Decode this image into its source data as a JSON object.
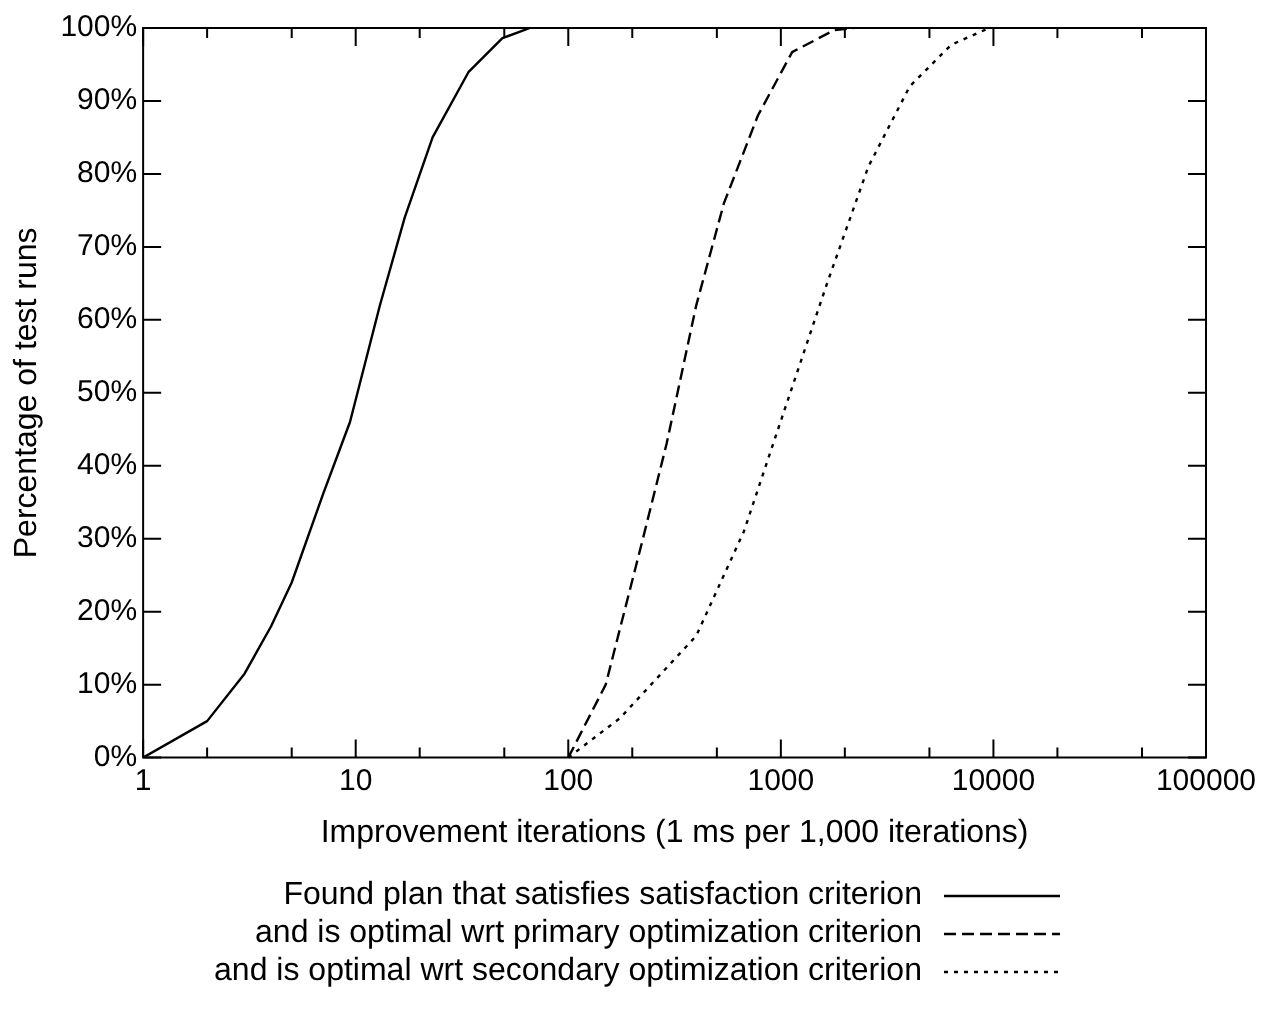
{
  "chart_data": {
    "type": "line",
    "xlabel": "Improvement iterations (1 ms per 1,000 iterations)",
    "ylabel": "Percentage of test runs",
    "log": "x",
    "grid": false,
    "legend": "bottom",
    "marker": "none",
    "xlim": [
      1,
      100000
    ],
    "xticks": [
      1,
      {
        "value": 2,
        "label": null
      },
      {
        "value": 5,
        "label": null
      },
      10,
      {
        "value": 20,
        "label": null
      },
      {
        "value": 50,
        "label": null
      },
      100,
      {
        "value": 200,
        "label": null
      },
      {
        "value": 500,
        "label": null
      },
      1000,
      {
        "value": 2000,
        "label": null
      },
      {
        "value": 5000,
        "label": null
      },
      10000,
      {
        "value": 20000,
        "label": null
      },
      {
        "value": 50000,
        "label": null
      },
      100000
    ],
    "ylim": [
      0,
      100
    ],
    "yticks": [
      {
        "value": 0,
        "label": "0%"
      },
      {
        "value": 10,
        "label": "10%"
      },
      {
        "value": 20,
        "label": "20%"
      },
      {
        "value": 30,
        "label": "30%"
      },
      {
        "value": 40,
        "label": "40%"
      },
      {
        "value": 50,
        "label": "50%"
      },
      {
        "value": 60,
        "label": "60%"
      },
      {
        "value": 70,
        "label": "70%"
      },
      {
        "value": 80,
        "label": "80%"
      },
      {
        "value": 90,
        "label": "90%"
      },
      {
        "value": 100,
        "label": "100%"
      }
    ],
    "series": [
      {
        "name": "Found plan that satisfies satisfaction criterion",
        "color": "#000000",
        "line_style": "solid",
        "x": [
          1,
          2,
          3,
          4,
          5,
          7,
          9.4,
          13,
          17,
          23,
          34,
          49,
          66
        ],
        "values": [
          0,
          5,
          11.5,
          18,
          24,
          36,
          46,
          62,
          74,
          85,
          94,
          98.6,
          100
        ]
      },
      {
        "name": "and is optimal wrt primary optimization criterion",
        "color": "#000000",
        "line_style": "dashed",
        "x": [
          100,
          150,
          220,
          290,
          400,
          540,
          780,
          1130,
          1780,
          2200
        ],
        "values": [
          0,
          10,
          29,
          43,
          62,
          76,
          88,
          96.7,
          99.7,
          100
        ]
      },
      {
        "name": "and is optimal wrt secondary optimization criterion",
        "color": "#000000",
        "line_style": "dotted",
        "x": [
          100,
          175,
          400,
          670,
          1050,
          1650,
          2580,
          4040,
          6330,
          9550
        ],
        "values": [
          0,
          5.4,
          16.7,
          31,
          48,
          65,
          81,
          92,
          97.7,
          100
        ]
      }
    ]
  }
}
